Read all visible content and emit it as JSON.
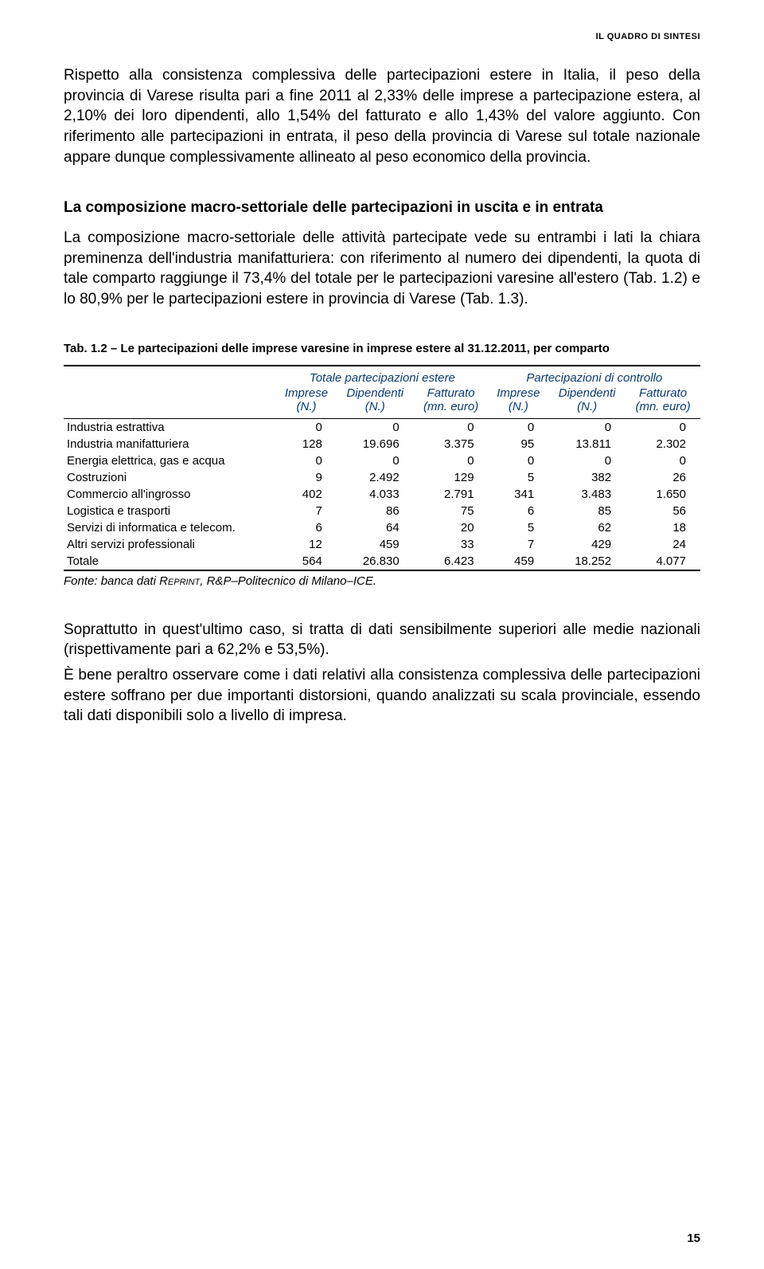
{
  "header": "IL QUADRO DI SINTESI",
  "para1": "Rispetto alla consistenza complessiva delle partecipazioni estere in Italia, il peso della provincia di Varese risulta pari a fine 2011 al 2,33% delle imprese a partecipazione estera, al 2,10% dei loro dipendenti, allo 1,54% del fatturato e allo 1,43% del valore aggiunto. Con riferimento alle partecipazioni in entrata, il peso della provincia di Varese sul totale nazionale appare dunque complessivamente allineato al peso economico della provincia.",
  "section_heading": "La composizione macro-settoriale delle partecipazioni in uscita e in entrata",
  "para2": "La composizione macro-settoriale delle attività partecipate vede su entrambi i lati la chiara preminenza dell'industria manifatturiera: con riferimento al numero dei dipendenti, la quota di tale comparto raggiunge il 73,4% del totale per le partecipazioni varesine all'estero (Tab. 1.2) e lo 80,9% per le partecipazioni estere in provincia di Varese (Tab. 1.3).",
  "table": {
    "caption": "Tab. 1.2 – Le partecipazioni delle imprese varesine in imprese estere al 31.12.2011, per comparto",
    "group_headers": [
      "",
      "Totale partecipazioni estere",
      "Partecipazioni di controllo"
    ],
    "col_headers": [
      "",
      "Imprese",
      "Dipendenti",
      "Fatturato",
      "Imprese",
      "Dipendenti",
      "Fatturato"
    ],
    "col_subs": [
      "",
      "(N.)",
      "(N.)",
      "(mn. euro)",
      "(N.)",
      "(N.)",
      "(mn. euro)"
    ],
    "rows": [
      {
        "label": "Industria estrattiva",
        "vals": [
          "0",
          "0",
          "0",
          "0",
          "0",
          "0"
        ]
      },
      {
        "label": "Industria manifatturiera",
        "vals": [
          "128",
          "19.696",
          "3.375",
          "95",
          "13.811",
          "2.302"
        ]
      },
      {
        "label": "Energia elettrica, gas e acqua",
        "vals": [
          "0",
          "0",
          "0",
          "0",
          "0",
          "0"
        ]
      },
      {
        "label": "Costruzioni",
        "vals": [
          "9",
          "2.492",
          "129",
          "5",
          "382",
          "26"
        ]
      },
      {
        "label": "Commercio all'ingrosso",
        "vals": [
          "402",
          "4.033",
          "2.791",
          "341",
          "3.483",
          "1.650"
        ]
      },
      {
        "label": "Logistica e trasporti",
        "vals": [
          "7",
          "86",
          "75",
          "6",
          "85",
          "56"
        ]
      },
      {
        "label": "Servizi di informatica e telecom.",
        "vals": [
          "6",
          "64",
          "20",
          "5",
          "62",
          "18"
        ]
      },
      {
        "label": "Altri servizi professionali",
        "vals": [
          "12",
          "459",
          "33",
          "7",
          "429",
          "24"
        ]
      },
      {
        "label": "Totale",
        "vals": [
          "564",
          "26.830",
          "6.423",
          "459",
          "18.252",
          "4.077"
        ]
      }
    ],
    "source_prefix": "Fonte: banca dati ",
    "source_smallcaps": "Reprint",
    "source_suffix": ", R&P–Politecnico di Milano–ICE.",
    "header_color": "#0a3a73"
  },
  "para3": "Soprattutto in quest'ultimo caso, si tratta di dati sensibilmente superiori alle medie nazionali (rispettivamente pari a 62,2% e 53,5%).",
  "para4": "È bene peraltro osservare come i dati relativi alla consistenza complessiva delle partecipazioni estere soffrano per due importanti distorsioni, quando analizzati su scala provinciale, essendo tali dati disponibili solo a livello di impresa.",
  "page_number": "15"
}
